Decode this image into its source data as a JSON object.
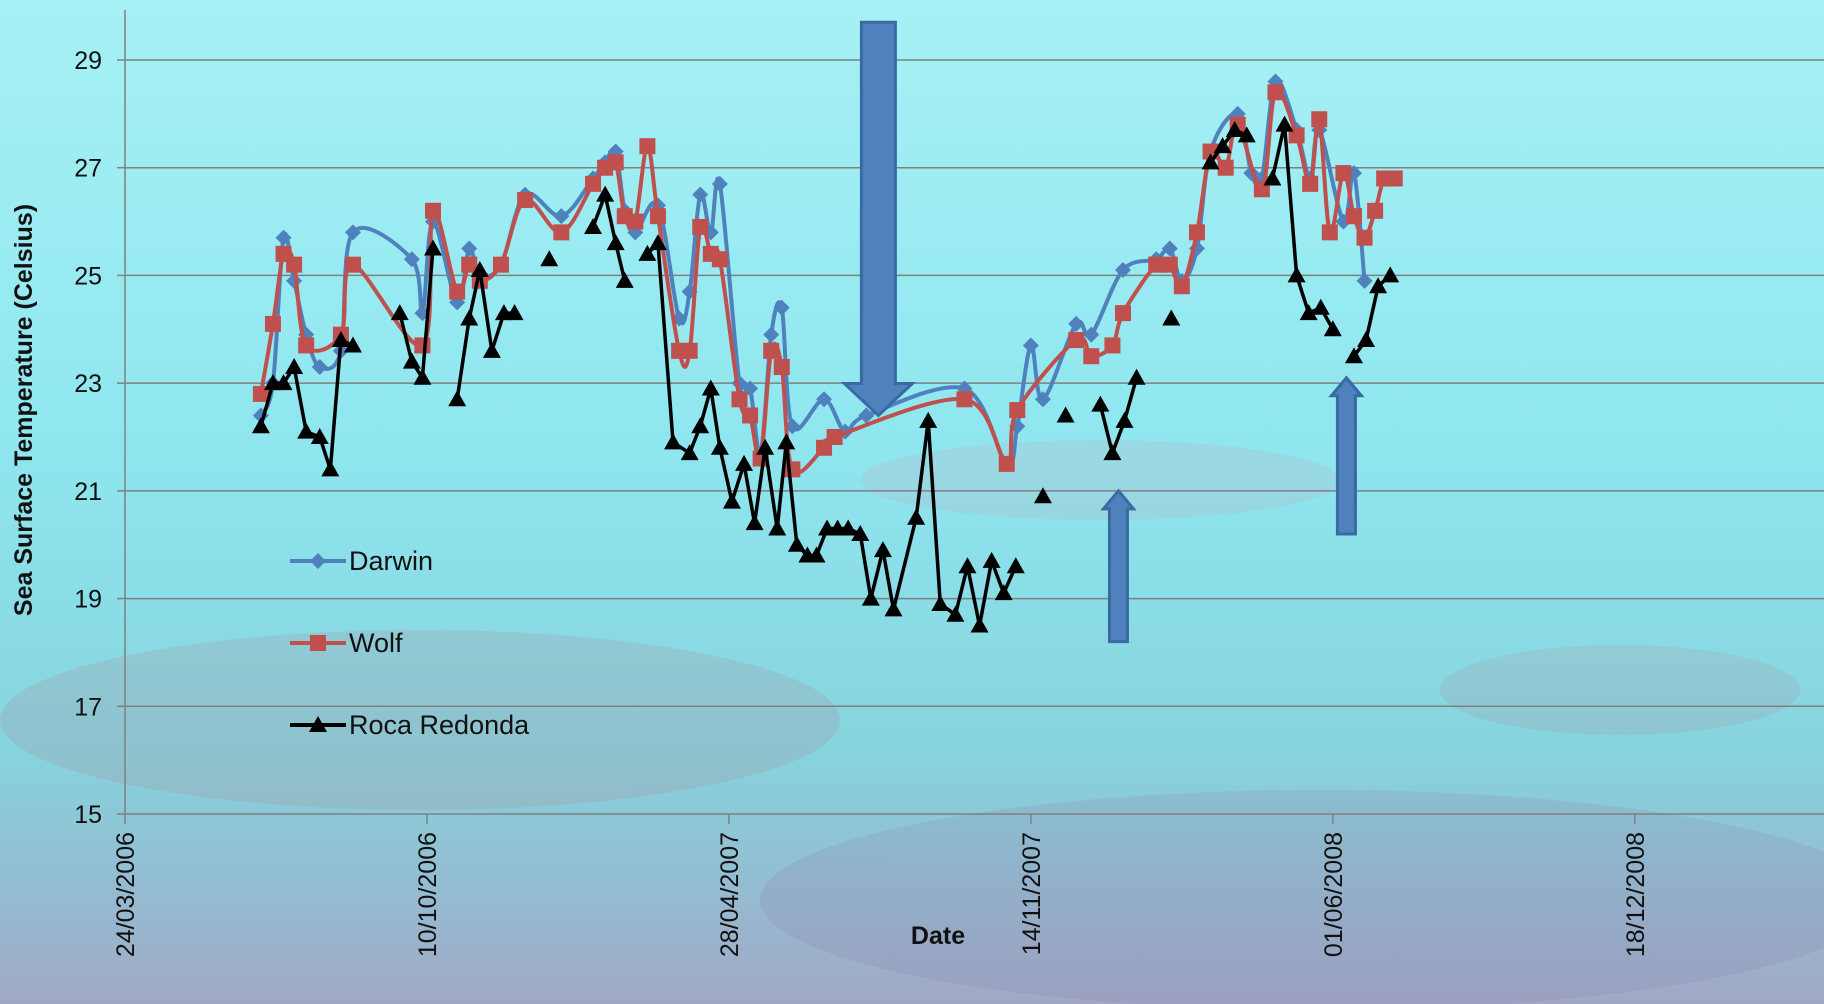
{
  "chart_data": {
    "type": "line",
    "title": "",
    "xlabel": "Date",
    "ylabel": "Sea Surface Temperature (Celsius)",
    "ylim": [
      15,
      30
    ],
    "xlim": [
      "2006-03-24",
      "2009-05-31"
    ],
    "yticks": [
      15,
      17,
      19,
      21,
      23,
      25,
      27,
      29
    ],
    "xticks": [
      {
        "date": "2006-03-24",
        "label": "24/03/2006"
      },
      {
        "date": "2006-10-10",
        "label": "10/10/2006"
      },
      {
        "date": "2007-04-28",
        "label": "28/04/2007"
      },
      {
        "date": "2007-11-14",
        "label": "14/11/2007"
      },
      {
        "date": "2008-06-01",
        "label": "01/06/2008"
      },
      {
        "date": "2008-12-18",
        "label": "18/12/2008"
      }
    ],
    "grid": true,
    "legend_position": "left-inside",
    "series": [
      {
        "name": "Darwin",
        "color": "#4f81bd",
        "marker": "diamond",
        "smooth": true,
        "points": [
          [
            "2006-06-22",
            22.4
          ],
          [
            "2006-06-30",
            23.0
          ],
          [
            "2006-07-07",
            25.7
          ],
          [
            "2006-07-14",
            24.9
          ],
          [
            "2006-07-22",
            23.9
          ],
          [
            "2006-07-31",
            23.3
          ],
          [
            "2006-08-14",
            23.6
          ],
          [
            "2006-08-22",
            25.8
          ],
          [
            "2006-09-30",
            25.3
          ],
          [
            "2006-10-07",
            24.3
          ],
          [
            "2006-10-14",
            26.0
          ],
          [
            "2006-10-30",
            24.5
          ],
          [
            "2006-11-07",
            25.5
          ],
          [
            "2006-11-14",
            25.0
          ],
          [
            "2006-11-28",
            25.2
          ],
          [
            "2006-12-14",
            26.5
          ],
          [
            "2007-01-07",
            26.1
          ],
          [
            "2007-01-28",
            26.8
          ],
          [
            "2007-02-05",
            27.1
          ],
          [
            "2007-02-12",
            27.3
          ],
          [
            "2007-02-18",
            26.2
          ],
          [
            "2007-02-25",
            25.8
          ],
          [
            "2007-03-12",
            26.3
          ],
          [
            "2007-03-26",
            24.2
          ],
          [
            "2007-04-02",
            24.7
          ],
          [
            "2007-04-09",
            26.5
          ],
          [
            "2007-04-16",
            25.8
          ],
          [
            "2007-04-22",
            26.7
          ],
          [
            "2007-05-05",
            23.0
          ],
          [
            "2007-05-12",
            22.9
          ],
          [
            "2007-05-19",
            21.7
          ],
          [
            "2007-05-26",
            23.9
          ],
          [
            "2007-06-02",
            24.4
          ],
          [
            "2007-06-09",
            22.2
          ],
          [
            "2007-06-30",
            22.7
          ],
          [
            "2007-07-14",
            22.1
          ],
          [
            "2007-07-28",
            22.4
          ],
          [
            "2007-10-01",
            22.9
          ],
          [
            "2007-10-29",
            21.5
          ],
          [
            "2007-11-05",
            22.2
          ],
          [
            "2007-11-14",
            23.7
          ],
          [
            "2007-11-22",
            22.7
          ],
          [
            "2007-12-14",
            24.1
          ],
          [
            "2007-12-24",
            23.9
          ],
          [
            "2008-01-14",
            25.1
          ],
          [
            "2008-02-05",
            25.3
          ],
          [
            "2008-02-14",
            25.5
          ],
          [
            "2008-02-22",
            24.9
          ],
          [
            "2008-03-03",
            25.5
          ],
          [
            "2008-03-12",
            27.3
          ],
          [
            "2008-03-30",
            28.0
          ],
          [
            "2008-04-08",
            26.9
          ],
          [
            "2008-04-15",
            26.8
          ],
          [
            "2008-04-24",
            28.6
          ],
          [
            "2008-05-08",
            27.7
          ],
          [
            "2008-05-17",
            26.8
          ],
          [
            "2008-05-23",
            27.7
          ],
          [
            "2008-06-08",
            26.0
          ],
          [
            "2008-06-15",
            26.9
          ],
          [
            "2008-06-22",
            24.9
          ]
        ]
      },
      {
        "name": "Wolf",
        "color": "#c0504d",
        "marker": "square",
        "smooth": true,
        "points": [
          [
            "2006-06-22",
            22.8
          ],
          [
            "2006-06-30",
            24.1
          ],
          [
            "2006-07-07",
            25.4
          ],
          [
            "2006-07-14",
            25.2
          ],
          [
            "2006-07-22",
            23.7
          ],
          [
            "2006-08-14",
            23.9
          ],
          [
            "2006-08-22",
            25.2
          ],
          [
            "2006-10-07",
            23.7
          ],
          [
            "2006-10-14",
            26.2
          ],
          [
            "2006-10-30",
            24.7
          ],
          [
            "2006-11-07",
            25.2
          ],
          [
            "2006-11-14",
            24.9
          ],
          [
            "2006-11-28",
            25.2
          ],
          [
            "2006-12-14",
            26.4
          ],
          [
            "2007-01-07",
            25.8
          ],
          [
            "2007-01-28",
            26.7
          ],
          [
            "2007-02-05",
            27.0
          ],
          [
            "2007-02-12",
            27.1
          ],
          [
            "2007-02-18",
            26.1
          ],
          [
            "2007-02-25",
            26.0
          ],
          [
            "2007-03-05",
            27.4
          ],
          [
            "2007-03-12",
            26.1
          ],
          [
            "2007-03-26",
            23.6
          ],
          [
            "2007-04-02",
            23.6
          ],
          [
            "2007-04-09",
            25.9
          ],
          [
            "2007-04-16",
            25.4
          ],
          [
            "2007-04-22",
            25.3
          ],
          [
            "2007-05-05",
            22.7
          ],
          [
            "2007-05-12",
            22.4
          ],
          [
            "2007-05-19",
            21.6
          ],
          [
            "2007-05-26",
            23.6
          ],
          [
            "2007-06-02",
            23.3
          ],
          [
            "2007-06-09",
            21.4
          ],
          [
            "2007-06-30",
            21.8
          ],
          [
            "2007-07-07",
            22.0
          ],
          [
            "2007-10-01",
            22.7
          ],
          [
            "2007-10-29",
            21.5
          ],
          [
            "2007-11-05",
            22.5
          ],
          [
            "2007-12-14",
            23.8
          ],
          [
            "2007-12-24",
            23.5
          ],
          [
            "2008-01-07",
            23.7
          ],
          [
            "2008-01-14",
            24.3
          ],
          [
            "2008-02-05",
            25.2
          ],
          [
            "2008-02-14",
            25.2
          ],
          [
            "2008-02-22",
            24.8
          ],
          [
            "2008-03-03",
            25.8
          ],
          [
            "2008-03-12",
            27.3
          ],
          [
            "2008-03-22",
            27.0
          ],
          [
            "2008-03-30",
            27.8
          ],
          [
            "2008-04-15",
            26.6
          ],
          [
            "2008-04-24",
            28.4
          ],
          [
            "2008-05-08",
            27.6
          ],
          [
            "2008-05-17",
            26.7
          ],
          [
            "2008-05-23",
            27.9
          ],
          [
            "2008-05-30",
            25.8
          ],
          [
            "2008-06-08",
            26.9
          ],
          [
            "2008-06-15",
            26.1
          ],
          [
            "2008-06-22",
            25.7
          ],
          [
            "2008-06-29",
            26.2
          ],
          [
            "2008-07-05",
            26.8
          ],
          [
            "2008-07-12",
            26.8
          ]
        ]
      },
      {
        "name": "Roca Redonda",
        "color": "#000000",
        "marker": "triangle",
        "smooth": false,
        "points": [
          [
            "2006-06-22",
            22.2
          ],
          [
            "2006-06-30",
            23.0
          ],
          [
            "2006-07-07",
            23.0
          ],
          [
            "2006-07-14",
            23.3
          ],
          [
            "2006-07-22",
            22.1
          ],
          [
            "2006-07-31",
            22.0
          ],
          [
            "2006-08-07",
            21.4
          ],
          [
            "2006-08-14",
            23.8
          ],
          [
            "2006-08-22",
            23.7
          ],
          null,
          [
            "2006-09-22",
            24.3
          ],
          [
            "2006-09-30",
            23.4
          ],
          [
            "2006-10-07",
            23.1
          ],
          [
            "2006-10-14",
            25.5
          ],
          null,
          [
            "2006-10-30",
            22.7
          ],
          [
            "2006-11-07",
            24.2
          ],
          [
            "2006-11-14",
            25.1
          ],
          [
            "2006-11-22",
            23.6
          ],
          [
            "2006-11-30",
            24.3
          ],
          [
            "2006-12-07",
            24.3
          ],
          null,
          [
            "2006-12-30",
            25.3
          ],
          null,
          [
            "2007-01-28",
            25.9
          ],
          [
            "2007-02-05",
            26.5
          ],
          [
            "2007-02-12",
            25.6
          ],
          [
            "2007-02-18",
            24.9
          ],
          null,
          [
            "2007-03-05",
            25.4
          ],
          [
            "2007-03-12",
            25.6
          ],
          [
            "2007-03-22",
            21.9
          ],
          [
            "2007-04-02",
            21.7
          ],
          [
            "2007-04-09",
            22.2
          ],
          [
            "2007-04-16",
            22.9
          ],
          [
            "2007-04-22",
            21.8
          ],
          [
            "2007-04-30",
            20.8
          ],
          [
            "2007-05-08",
            21.5
          ],
          [
            "2007-05-15",
            20.4
          ],
          [
            "2007-05-22",
            21.8
          ],
          [
            "2007-05-30",
            20.3
          ],
          [
            "2007-06-05",
            21.9
          ],
          [
            "2007-06-12",
            20.0
          ],
          [
            "2007-06-19",
            19.8
          ],
          [
            "2007-06-25",
            19.8
          ],
          [
            "2007-07-02",
            20.3
          ],
          [
            "2007-07-09",
            20.3
          ],
          [
            "2007-07-16",
            20.3
          ],
          [
            "2007-07-24",
            20.2
          ],
          [
            "2007-07-31",
            19.0
          ],
          [
            "2007-08-08",
            19.9
          ],
          [
            "2007-08-15",
            18.8
          ],
          [
            "2007-08-30",
            20.5
          ],
          [
            "2007-09-07",
            22.3
          ],
          [
            "2007-09-15",
            18.9
          ],
          [
            "2007-09-25",
            18.7
          ],
          [
            "2007-10-03",
            19.6
          ],
          [
            "2007-10-11",
            18.5
          ],
          [
            "2007-10-19",
            19.7
          ],
          [
            "2007-10-27",
            19.1
          ],
          [
            "2007-11-04",
            19.6
          ],
          null,
          [
            "2007-11-22",
            20.9
          ],
          null,
          [
            "2007-12-07",
            22.4
          ],
          null,
          [
            "2007-12-30",
            22.6
          ],
          [
            "2008-01-07",
            21.7
          ],
          [
            "2008-01-15",
            22.3
          ],
          [
            "2008-01-23",
            23.1
          ],
          null,
          [
            "2008-02-15",
            24.2
          ],
          null,
          [
            "2008-03-12",
            27.1
          ],
          [
            "2008-03-20",
            27.4
          ],
          [
            "2008-03-28",
            27.7
          ],
          [
            "2008-04-05",
            27.6
          ],
          null,
          [
            "2008-04-22",
            26.8
          ],
          [
            "2008-04-30",
            27.8
          ],
          [
            "2008-05-08",
            25.0
          ],
          [
            "2008-05-16",
            24.3
          ],
          [
            "2008-05-24",
            24.4
          ],
          [
            "2008-06-01",
            24.0
          ],
          null,
          [
            "2008-06-15",
            23.5
          ],
          [
            "2008-06-23",
            23.8
          ],
          [
            "2008-07-01",
            24.8
          ],
          [
            "2008-07-09",
            25.0
          ]
        ]
      }
    ],
    "annotations": [
      {
        "type": "arrow",
        "direction": "down",
        "color": "#4f81bd",
        "size": "large",
        "date": "2007-08-05",
        "y_from": 29.7,
        "y_to": 22.4
      },
      {
        "type": "arrow",
        "direction": "up",
        "color": "#4f81bd",
        "size": "small",
        "date": "2008-01-11",
        "y_from": 18.2,
        "y_to": 21.0
      },
      {
        "type": "arrow",
        "direction": "up",
        "color": "#4f81bd",
        "size": "small",
        "date": "2008-06-10",
        "y_from": 20.2,
        "y_to": 23.1
      }
    ]
  }
}
